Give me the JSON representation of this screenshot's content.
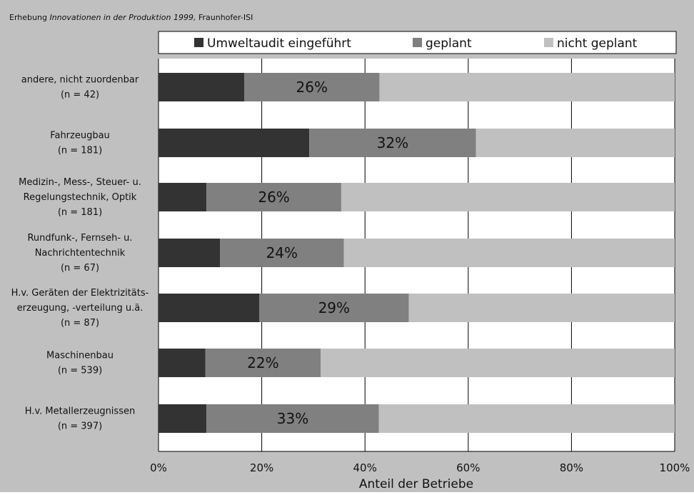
{
  "source": {
    "prefix": "Erhebung ",
    "title_italic": "Innovationen in der Produktion 1999,",
    "suffix": " Fraunhofer-ISI"
  },
  "colors": {
    "frame_bg": "#c0c0c0",
    "plot_bg": "#ffffff",
    "grid": "#000000",
    "text": "#111111"
  },
  "chart_data": {
    "type": "bar",
    "orientation": "horizontal",
    "stacked": true,
    "percent_stacked": true,
    "xlabel": "Anteil der Betriebe",
    "xlim": [
      0,
      100
    ],
    "xticks": [
      "0%",
      "20%",
      "40%",
      "60%",
      "80%",
      "100%"
    ],
    "grid": true,
    "legend_position": "top",
    "categories": [
      [
        "andere, nicht zuordenbar",
        "(n = 42)"
      ],
      [
        "Fahrzeugbau",
        "(n = 181)"
      ],
      [
        "Medizin-, Mess-, Steuer- u.",
        "Regelungstechnik, Optik",
        "(n = 181)"
      ],
      [
        "Rundfunk-, Fernseh- u.",
        "Nachrichtentechnik",
        "(n = 67)"
      ],
      [
        "H.v. Geräten der Elektrizitäts-",
        "erzeugung, -verteilung u.ä.",
        "(n = 87)"
      ],
      [
        "Maschinenbau",
        "(n = 539)"
      ],
      [
        "H.v. Metallerzeugnissen",
        "(n = 397)"
      ]
    ],
    "series": [
      {
        "name": "Umweltaudit eingeführt",
        "color": "#333333",
        "values": [
          16.6,
          29.2,
          9.3,
          11.9,
          19.5,
          9.1,
          9.3
        ]
      },
      {
        "name": "geplant",
        "color": "#808080",
        "values": [
          26.2,
          32.3,
          26.1,
          24.0,
          29.0,
          22.3,
          33.4
        ]
      },
      {
        "name": "nicht geplant",
        "color": "#c0c0c0",
        "values": [
          57.2,
          38.5,
          64.6,
          64.1,
          51.5,
          68.6,
          57.3
        ]
      }
    ],
    "data_labels": [
      "26%",
      "32%",
      "26%",
      "24%",
      "29%",
      "22%",
      "33%"
    ]
  }
}
